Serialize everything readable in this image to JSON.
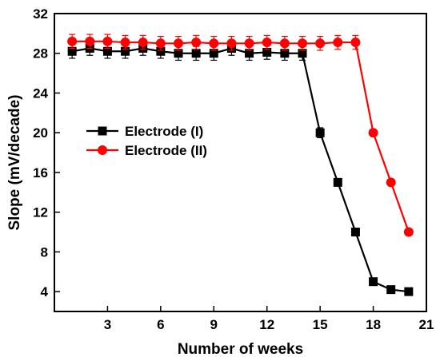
{
  "chart_data": {
    "type": "line",
    "title": "",
    "xlabel": "Number of weeks",
    "ylabel": "Slope (mV/decade)",
    "xlim": [
      0,
      21
    ],
    "ylim": [
      2,
      32
    ],
    "xticks": [
      3,
      6,
      9,
      12,
      15,
      18,
      21
    ],
    "yticks": [
      4,
      8,
      12,
      16,
      20,
      24,
      28,
      32
    ],
    "grid": false,
    "legend_position": "center-left",
    "series": [
      {
        "name": "Electrode (I)",
        "color": "#000000",
        "marker": "square",
        "x": [
          1,
          2,
          3,
          4,
          5,
          6,
          7,
          8,
          9,
          10,
          11,
          12,
          13,
          14,
          15,
          16,
          17,
          18,
          19,
          20
        ],
        "y": [
          28.2,
          28.5,
          28.2,
          28.2,
          28.5,
          28.2,
          28.0,
          28.0,
          28.0,
          28.5,
          28.0,
          28.1,
          28.0,
          28.0,
          20.0,
          15.0,
          10.0,
          5.0,
          4.2,
          4.0
        ],
        "error": [
          0.7,
          0.7,
          0.7,
          0.7,
          0.7,
          0.7,
          0.7,
          0.7,
          0.7,
          0.7,
          0.7,
          0.7,
          0.7,
          0.7,
          0.5,
          0,
          0,
          0,
          0,
          0
        ]
      },
      {
        "name": "Electrode (II)",
        "color": "#ff0000",
        "marker": "circle",
        "x": [
          1,
          2,
          3,
          4,
          5,
          6,
          7,
          8,
          9,
          10,
          11,
          12,
          13,
          14,
          15,
          16,
          17,
          18,
          19,
          20
        ],
        "y": [
          29.2,
          29.2,
          29.2,
          29.1,
          29.1,
          29.0,
          29.0,
          29.1,
          29.0,
          29.0,
          29.0,
          29.1,
          29.0,
          29.0,
          29.0,
          29.1,
          29.1,
          20.0,
          15.0,
          10.0
        ],
        "error": [
          0.7,
          0.7,
          0.7,
          0.7,
          0.7,
          0.7,
          0.7,
          0.7,
          0.7,
          0.7,
          0.7,
          0.7,
          0.7,
          0.7,
          0.7,
          0.7,
          0.7,
          0,
          0,
          0
        ]
      }
    ]
  }
}
